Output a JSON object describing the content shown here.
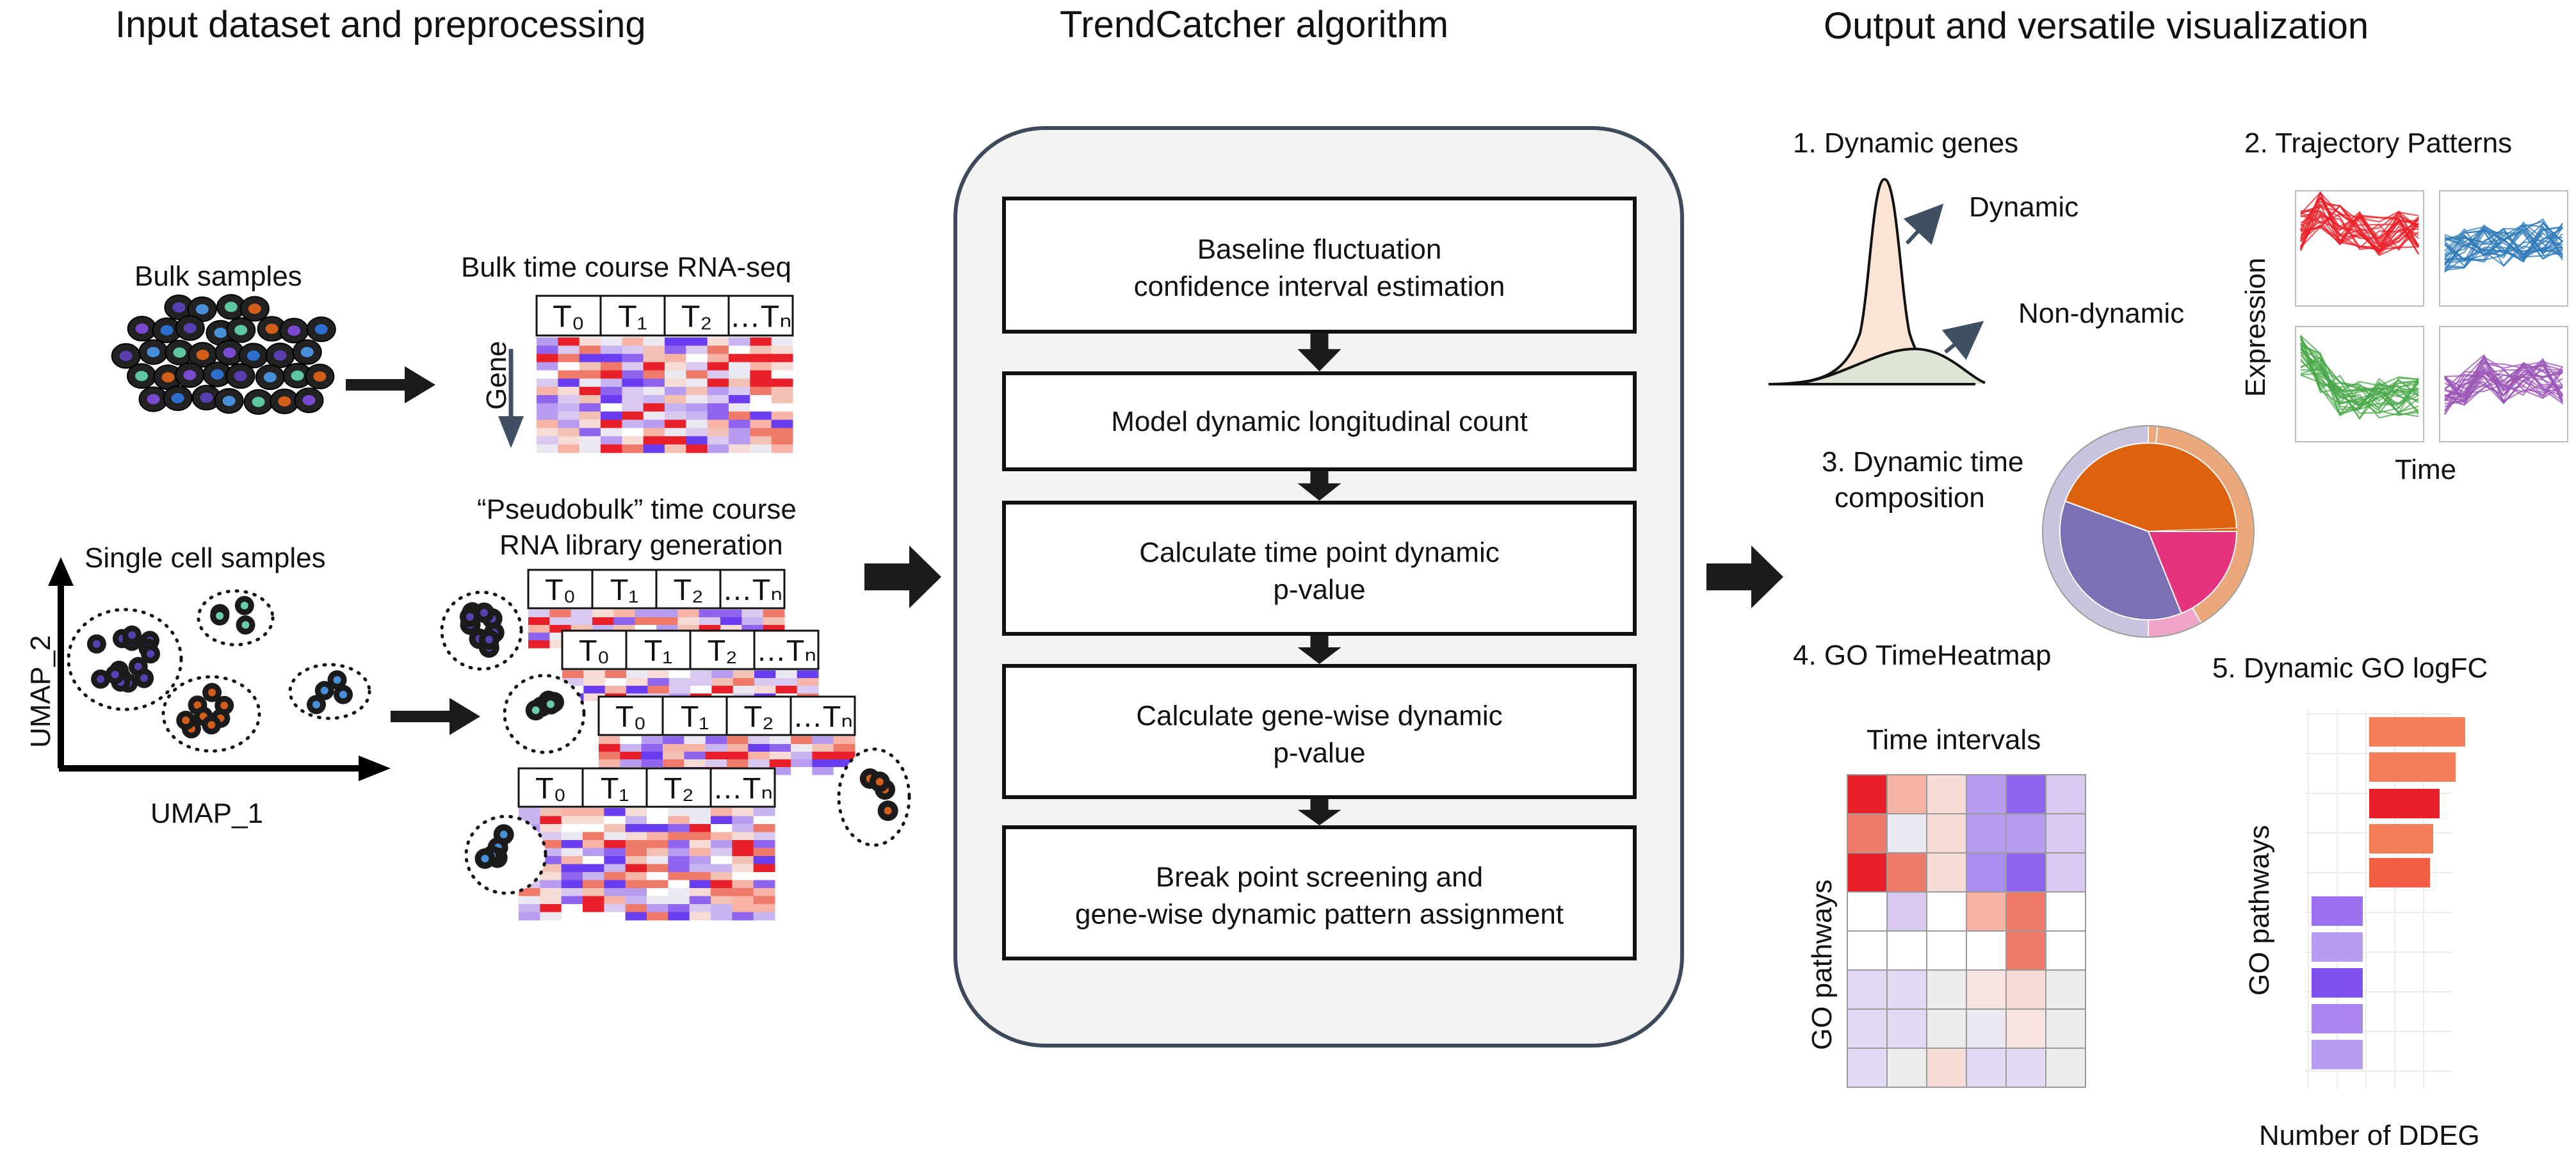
{
  "sections": {
    "input": "Input dataset and preprocessing",
    "algorithm": "TrendCatcher algorithm",
    "output": "Output and versatile visualization"
  },
  "input": {
    "bulk_samples": "Bulk samples",
    "bulk_rnaseq": "Bulk time course RNA-seq",
    "gene_label": "Gene",
    "time_headers": [
      "T₀",
      "T₁",
      "T₂",
      "…Tₙ"
    ],
    "pseudobulk_line1": "“Pseudobulk” time course",
    "pseudobulk_line2": "RNA library generation",
    "single_cell": "Single cell samples",
    "umap_x": "UMAP_1",
    "umap_y": "UMAP_2"
  },
  "steps": [
    {
      "line1": "Baseline fluctuation",
      "line2": "confidence interval estimation"
    },
    {
      "line1": "Model dynamic longitudinal count",
      "line2": ""
    },
    {
      "line1": "Calculate time point dynamic",
      "line2": "p-value"
    },
    {
      "line1": "Calculate gene-wise dynamic",
      "line2": "p-value"
    },
    {
      "line1": "Break point screening and",
      "line2": "gene-wise dynamic pattern assignment"
    }
  ],
  "output": {
    "dynamic_genes": "1. Dynamic genes",
    "dynamic": "Dynamic",
    "non_dynamic": "Non-dynamic",
    "trajectory": "2. Trajectory Patterns",
    "expression": "Expression",
    "time": "Time",
    "composition_line1": "3. Dynamic time",
    "composition_line2": "composition",
    "go_heatmap": "4. GO TimeHeatmap",
    "time_intervals": "Time intervals",
    "go_pathways": "GO pathways",
    "go_logfc": "5. Dynamic GO logFC",
    "go_pathways_2": "GO pathways",
    "number_ddeg": "Number of DDEG"
  },
  "colors": {
    "arrow": "#1b1b1b",
    "panel_border": "#3d4a5c",
    "panel_fill": "#f3f3f3",
    "red": "#e8202a",
    "blue": "#2f7ab8",
    "green": "#4aa84a",
    "purple": "#9b55b5",
    "orange": "#dd6210",
    "violet": "#7d6fb3",
    "pink": "#e6327f"
  }
}
